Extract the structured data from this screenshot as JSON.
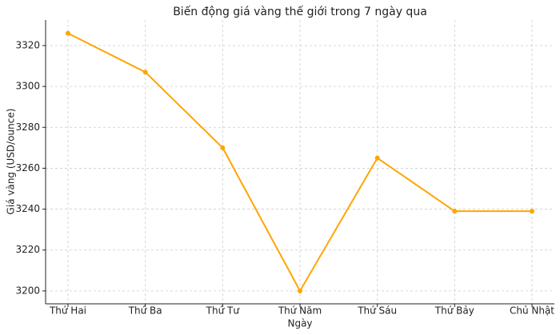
{
  "chart_data": {
    "type": "line",
    "title": "Biến động giá vàng thế giới trong 7 ngày qua",
    "xlabel": "Ngày",
    "ylabel": "Giá vàng (USD/ounce)",
    "categories": [
      "Thứ Hai",
      "Thứ Ba",
      "Thứ Tư",
      "Thứ Năm",
      "Thứ Sáu",
      "Thứ Bảy",
      "Chủ Nhật"
    ],
    "series": [
      {
        "name": "Giá vàng",
        "color": "#ffa500",
        "values": [
          3326,
          3307,
          3270,
          3200,
          3265,
          3239,
          3239
        ]
      }
    ],
    "ylim": [
      3193.7,
      3332.5
    ],
    "yticks": [
      3200,
      3220,
      3240,
      3260,
      3280,
      3300,
      3320
    ],
    "grid": true
  }
}
